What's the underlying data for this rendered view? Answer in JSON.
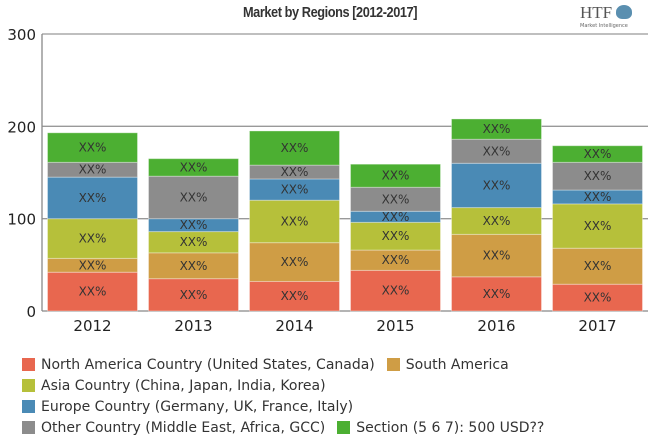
{
  "chart_data": {
    "type": "bar",
    "stacked": true,
    "title": "Market by Regions [2012-2017]",
    "categories": [
      "2012",
      "2013",
      "2014",
      "2015",
      "2016",
      "2017"
    ],
    "ylim": [
      0,
      300
    ],
    "yticks": [
      0,
      100,
      200,
      300
    ],
    "grid": true,
    "legend_placement": "bottom",
    "segment_label": "XX%",
    "series": [
      {
        "name": "North America Country (United States, Canada)",
        "color": "#e8674f",
        "values": [
          42,
          35,
          32,
          44,
          37,
          29
        ]
      },
      {
        "name": "South America",
        "color": "#cf9d45",
        "values": [
          15,
          28,
          42,
          22,
          46,
          39
        ]
      },
      {
        "name": "Asia Country (China, Japan, India, Korea)",
        "color": "#b6c03a",
        "values": [
          43,
          23,
          46,
          30,
          29,
          48
        ]
      },
      {
        "name": "Europe Country (Germany, UK, France, Italy)",
        "color": "#4a8ab5",
        "values": [
          45,
          14,
          23,
          12,
          48,
          15
        ]
      },
      {
        "name": "Other Country (Middle East, Africa, GCC)",
        "color": "#8c8c8c",
        "values": [
          16,
          46,
          15,
          26,
          26,
          30
        ]
      },
      {
        "name": "Section (5 6 7): 500 USD??",
        "color": "#4caf32",
        "values": [
          32,
          19,
          37,
          25,
          22,
          18
        ]
      }
    ]
  },
  "logo": {
    "text": "HTF",
    "subtext": "Market Intelligence"
  }
}
